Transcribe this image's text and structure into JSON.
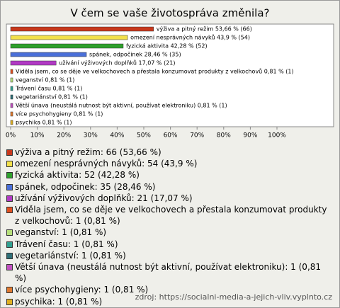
{
  "chart_data": {
    "type": "bar",
    "orientation": "horizontal",
    "title": "V čem se vaše životospráva změnila?",
    "values": [
      53.66,
      43.9,
      42.28,
      28.46,
      17.07,
      0.81,
      0.81,
      0.81,
      0.81,
      0.81,
      0.81,
      0.81
    ],
    "value_labels": [
      "výživa a pitný režim 53,66 % (66)",
      "omezení nesprávných návyků 43,9 % (54)",
      "fyzická aktivita 42,28 % (52)",
      "spánek, odpočinek 28,46 % (35)",
      "užívání výživových doplňků 17,07 % (21)",
      "Viděla jsem, co se děje ve velkochovech a přestala konzumovat produkty z velkochovů 0,81 % (1)",
      "veganství 0,81 % (1)",
      "Trávení času 0,81 % (1)",
      "vegetariánství 0,81 % (1)",
      "Větší únava (neustálá nutnost být aktivní, používat elektroniku) 0,81 % (1)",
      "více psychohygieny 0,81 % (1)",
      "psychika 0,81 % (1)"
    ],
    "legend_labels": [
      "výživa a pitný režim: 66 (53,66 %)",
      "omezení nesprávných návyků: 54 (43,9 %)",
      "fyzická aktivita: 52 (42,28 %)",
      "spánek, odpočinek: 35 (28,46 %)",
      "užívání výživových doplňků: 21 (17,07 %)",
      "Viděla jsem, co se děje ve velkochovech a přestala konzumovat produkty z velkochovů: 1 (0,81 %)",
      "veganství: 1 (0,81 %)",
      "Trávení času: 1 (0,81 %)",
      "vegetariánství: 1 (0,81 %)",
      "Větší únava (neustálá nutnost být aktivní, používat elektroniku): 1 (0,81 %)",
      "více psychohygieny: 1 (0,81 %)",
      "psychika: 1 (0,81 %)"
    ],
    "colors": [
      "#c8381c",
      "#f2e04a",
      "#2ea02c",
      "#4a6fd8",
      "#b13ac4",
      "#e05020",
      "#b6e07a",
      "#30a090",
      "#2f6f77",
      "#c050c0",
      "#e07a30",
      "#e0b020"
    ],
    "xlim": [
      0,
      100
    ],
    "xticks": [
      {
        "value": 0,
        "label": "0%"
      },
      {
        "value": 10,
        "label": "10%"
      },
      {
        "value": 20,
        "label": "20%"
      },
      {
        "value": 30,
        "label": "30%"
      },
      {
        "value": 40,
        "label": "40%"
      },
      {
        "value": 50,
        "label": "50%"
      },
      {
        "value": 60,
        "label": "60%"
      },
      {
        "value": 70,
        "label": "70%"
      },
      {
        "value": 80,
        "label": "80%"
      },
      {
        "value": 90,
        "label": "90%"
      },
      {
        "value": 100,
        "label": "100%"
      }
    ],
    "source": "zdroj: https://socialni-media-a-jejich-vliv.vyplnto.cz"
  }
}
